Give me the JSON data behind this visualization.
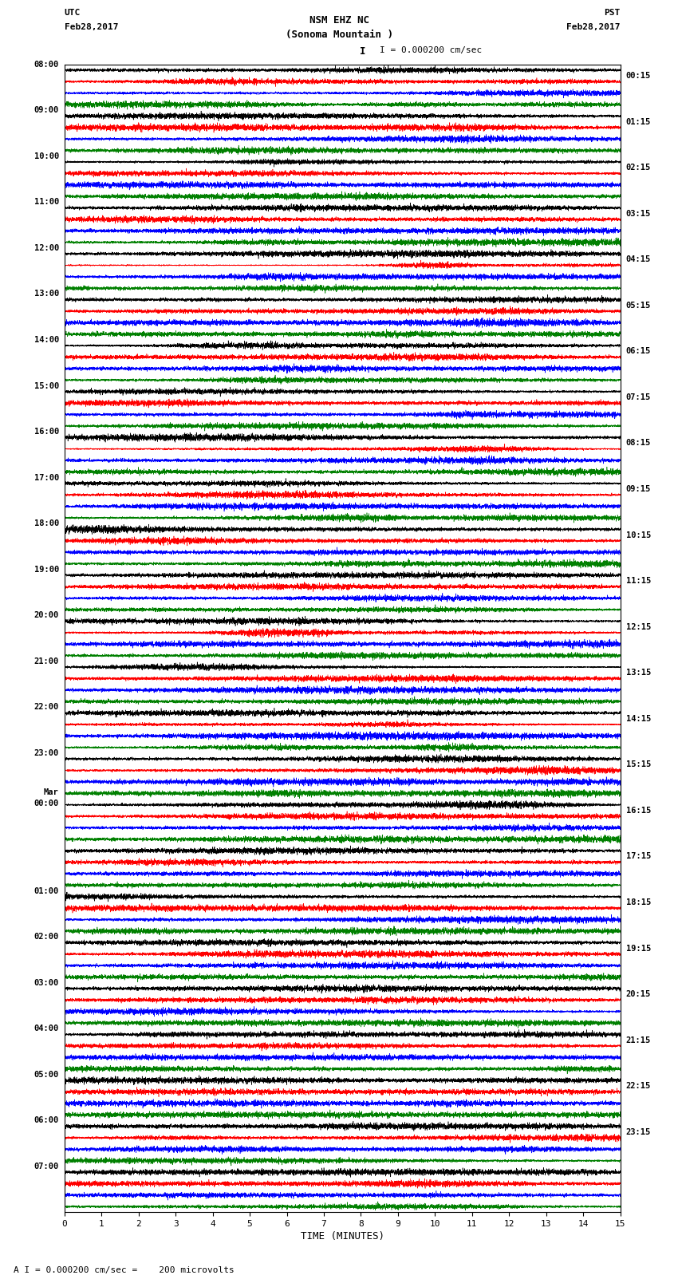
{
  "title_line1": "NSM EHZ NC",
  "title_line2": "(Sonoma Mountain )",
  "title_line3": "I = 0.000200 cm/sec",
  "left_header_line1": "UTC",
  "left_header_line2": "Feb28,2017",
  "right_header_line1": "PST",
  "right_header_line2": "Feb28,2017",
  "xlabel": "TIME (MINUTES)",
  "footer": "A I = 0.000200 cm/sec =    200 microvolts",
  "left_times": [
    "08:00",
    "09:00",
    "10:00",
    "11:00",
    "12:00",
    "13:00",
    "14:00",
    "15:00",
    "16:00",
    "17:00",
    "18:00",
    "19:00",
    "20:00",
    "21:00",
    "22:00",
    "23:00",
    "Mar\n00:00",
    "01:00",
    "02:00",
    "03:00",
    "04:00",
    "05:00",
    "06:00",
    "07:00"
  ],
  "left_times_display": [
    "08:00",
    "09:00",
    "10:00",
    "11:00",
    "12:00",
    "13:00",
    "14:00",
    "15:00",
    "16:00",
    "17:00",
    "18:00",
    "19:00",
    "20:00",
    "21:00",
    "22:00",
    "23:00",
    "Mar",
    "00:00",
    "01:00",
    "02:00",
    "03:00",
    "04:00",
    "05:00",
    "06:00",
    "07:00"
  ],
  "right_times": [
    "00:15",
    "01:15",
    "02:15",
    "03:15",
    "04:15",
    "05:15",
    "06:15",
    "07:15",
    "08:15",
    "09:15",
    "10:15",
    "11:15",
    "12:15",
    "13:15",
    "14:15",
    "15:15",
    "16:15",
    "17:15",
    "18:15",
    "19:15",
    "20:15",
    "21:15",
    "22:15",
    "23:15"
  ],
  "n_rows": 25,
  "n_traces_per_row": 4,
  "trace_colors": [
    "black",
    "red",
    "blue",
    "green"
  ],
  "x_min": 0,
  "x_max": 15,
  "x_ticks": [
    0,
    1,
    2,
    3,
    4,
    5,
    6,
    7,
    8,
    9,
    10,
    11,
    12,
    13,
    14,
    15
  ],
  "bg_color": "white",
  "plot_area_bg": "white",
  "fig_width": 8.5,
  "fig_height": 16.13,
  "seed": 42,
  "n_pts": 6000,
  "base_amplitude": 0.44,
  "linewidth": 0.4
}
